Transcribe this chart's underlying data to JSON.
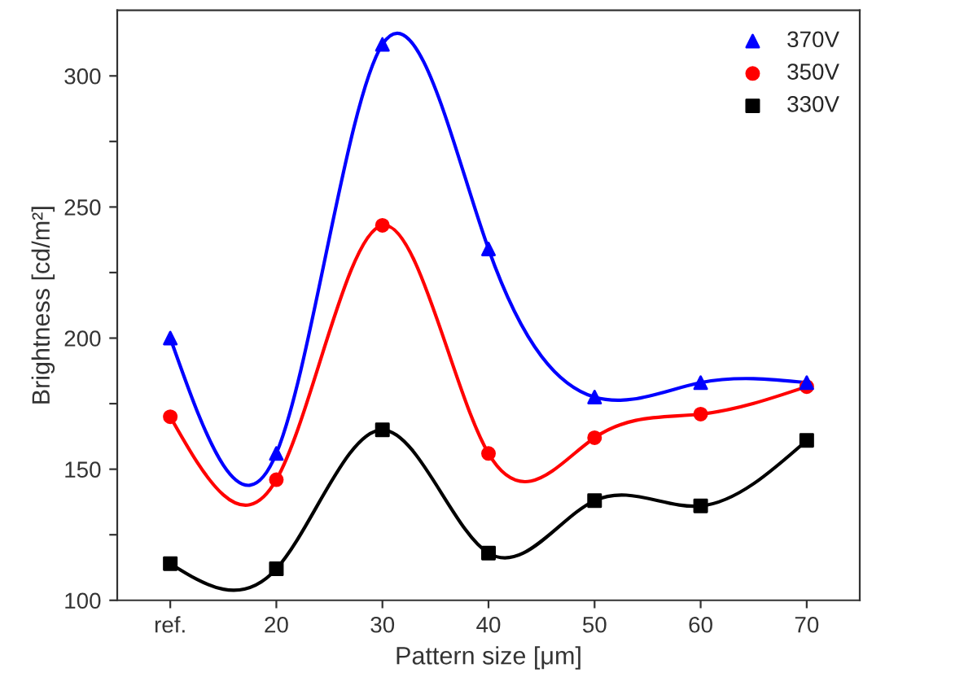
{
  "chart_data": {
    "type": "line",
    "xlabel": "Pattern size [μm]",
    "ylabel": "Brightness [cd/m²]",
    "categories": [
      "ref.",
      "20",
      "30",
      "40",
      "50",
      "60",
      "70"
    ],
    "series": [
      {
        "name": "370V",
        "color": "#0000ff",
        "marker": "triangle",
        "values": [
          200,
          156,
          312,
          234,
          177.5,
          183,
          183
        ]
      },
      {
        "name": "350V",
        "color": "#ff0000",
        "marker": "circle",
        "values": [
          170,
          146,
          243,
          156,
          162,
          171,
          181.5
        ]
      },
      {
        "name": "330V",
        "color": "#000000",
        "marker": "square",
        "values": [
          114,
          112,
          165,
          118,
          138,
          136,
          161
        ]
      }
    ],
    "ylim": [
      100,
      325
    ],
    "yticks": [
      100,
      {
        "value": 125,
        "label": null
      },
      150,
      {
        "value": 175,
        "label": null
      },
      200,
      {
        "value": 225,
        "label": null
      },
      250,
      {
        "value": 275,
        "label": null
      },
      300
    ],
    "grid": false,
    "legend": "top right",
    "line_style": "solid"
  }
}
